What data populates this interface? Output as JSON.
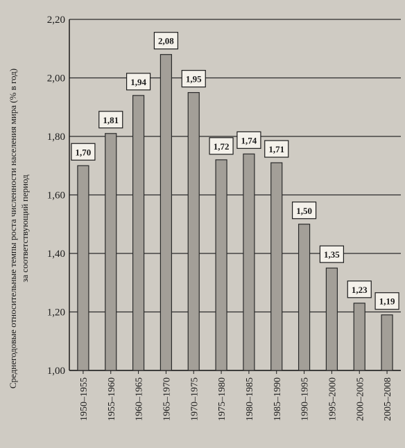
{
  "chart_data": {
    "type": "bar",
    "title": "",
    "ylabel_line1": "Среднегодовые относительные темпы роста численности населения мира (% в год)",
    "ylabel_line2": "за соответствующий период",
    "xlabel": "",
    "categories": [
      "1950–1955",
      "1955–1960",
      "1960–1965",
      "1965–1970",
      "1970–1975",
      "1975–1980",
      "1980–1985",
      "1985–1990",
      "1990–1995",
      "1995–2000",
      "2000–2005",
      "2005–2008"
    ],
    "values": [
      1.7,
      1.81,
      1.94,
      2.08,
      1.95,
      1.72,
      1.74,
      1.71,
      1.5,
      1.35,
      1.23,
      1.19
    ],
    "value_labels": [
      "1,70",
      "1,81",
      "1,94",
      "2,08",
      "1,95",
      "1,72",
      "1,74",
      "1,71",
      "1,50",
      "1,35",
      "1,23",
      "1,19"
    ],
    "ylim": [
      1.0,
      2.2
    ],
    "yticks": [
      1.0,
      1.2,
      1.4,
      1.6,
      1.8,
      2.0,
      2.2
    ],
    "ytick_labels": [
      "1,00",
      "1,20",
      "1,40",
      "1,60",
      "1,80",
      "2,00",
      "2,20"
    ],
    "grid": true,
    "bar_color": "#a39f98",
    "grid_color": "#2a2a2a"
  }
}
